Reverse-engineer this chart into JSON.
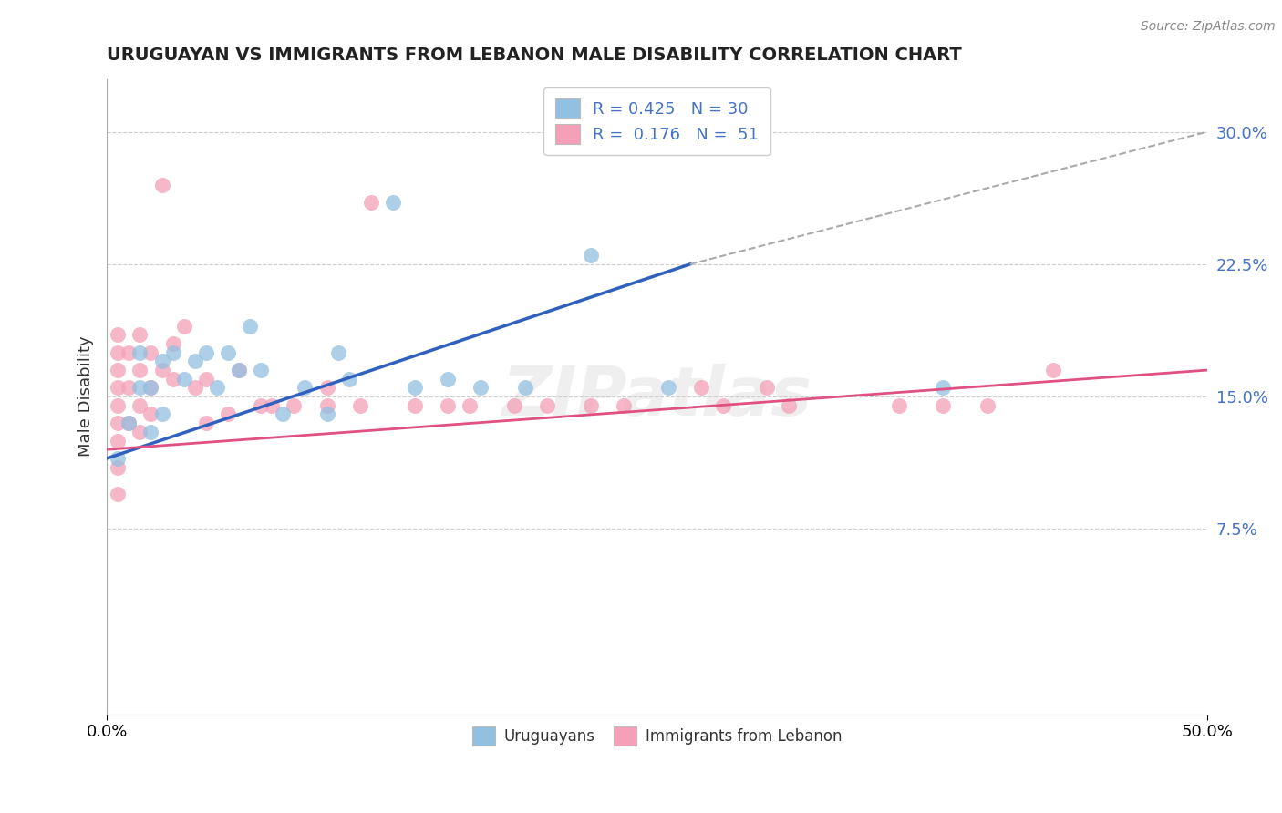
{
  "title": "URUGUAYAN VS IMMIGRANTS FROM LEBANON MALE DISABILITY CORRELATION CHART",
  "source": "Source: ZipAtlas.com",
  "ylabel": "Male Disability",
  "xlim": [
    0.0,
    0.5
  ],
  "ylim": [
    -0.03,
    0.33
  ],
  "ytick_vals": [
    0.075,
    0.15,
    0.225,
    0.3
  ],
  "ytick_labels": [
    "7.5%",
    "15.0%",
    "22.5%",
    "30.0%"
  ],
  "xtick_vals": [
    0.0,
    0.5
  ],
  "xtick_labels": [
    "0.0%",
    "50.0%"
  ],
  "uruguayan_color": "#92C0E0",
  "lebanon_color": "#F4A0B8",
  "trend_uruguayan_color": "#3060C0",
  "trend_lebanon_color": "#E05080",
  "trend_dashed_color": "#AAAAAA",
  "background_color": "#FFFFFF",
  "grid_color": "#CCCCCC",
  "tick_label_color": "#4472C4",
  "legend1_label1": "R = 0.425   N = 30",
  "legend1_label2": "R =  0.176   N =  51",
  "legend2_label1": "Uruguayans",
  "legend2_label2": "Immigrants from Lebanon",
  "watermark": "ZIPatlas",
  "uruguayan_points_x": [
    0.005,
    0.01,
    0.015,
    0.015,
    0.02,
    0.02,
    0.025,
    0.025,
    0.03,
    0.035,
    0.04,
    0.045,
    0.05,
    0.055,
    0.06,
    0.065,
    0.07,
    0.08,
    0.09,
    0.1,
    0.105,
    0.11,
    0.13,
    0.14,
    0.155,
    0.17,
    0.19,
    0.22,
    0.255,
    0.38
  ],
  "uruguayan_points_y": [
    0.115,
    0.135,
    0.155,
    0.175,
    0.13,
    0.155,
    0.14,
    0.17,
    0.175,
    0.16,
    0.17,
    0.175,
    0.155,
    0.175,
    0.165,
    0.19,
    0.165,
    0.14,
    0.155,
    0.14,
    0.175,
    0.16,
    0.26,
    0.155,
    0.16,
    0.155,
    0.155,
    0.23,
    0.155,
    0.155
  ],
  "lebanon_points_x": [
    0.005,
    0.005,
    0.005,
    0.005,
    0.005,
    0.005,
    0.005,
    0.005,
    0.005,
    0.01,
    0.01,
    0.01,
    0.015,
    0.015,
    0.015,
    0.015,
    0.02,
    0.02,
    0.02,
    0.025,
    0.025,
    0.03,
    0.03,
    0.035,
    0.04,
    0.045,
    0.045,
    0.055,
    0.06,
    0.07,
    0.075,
    0.085,
    0.1,
    0.1,
    0.115,
    0.12,
    0.14,
    0.155,
    0.165,
    0.185,
    0.2,
    0.22,
    0.235,
    0.27,
    0.28,
    0.3,
    0.31,
    0.36,
    0.38,
    0.4,
    0.43
  ],
  "lebanon_points_y": [
    0.095,
    0.11,
    0.125,
    0.135,
    0.145,
    0.155,
    0.165,
    0.175,
    0.185,
    0.135,
    0.155,
    0.175,
    0.13,
    0.145,
    0.165,
    0.185,
    0.14,
    0.155,
    0.175,
    0.165,
    0.27,
    0.16,
    0.18,
    0.19,
    0.155,
    0.16,
    0.135,
    0.14,
    0.165,
    0.145,
    0.145,
    0.145,
    0.155,
    0.145,
    0.145,
    0.26,
    0.145,
    0.145,
    0.145,
    0.145,
    0.145,
    0.145,
    0.145,
    0.155,
    0.145,
    0.155,
    0.145,
    0.145,
    0.145,
    0.145,
    0.165
  ],
  "trend_u_x0": 0.0,
  "trend_u_y0": 0.115,
  "trend_u_x1": 0.265,
  "trend_u_y1": 0.225,
  "trend_u_dash_x0": 0.265,
  "trend_u_dash_y0": 0.225,
  "trend_u_dash_x1": 0.5,
  "trend_u_dash_y1": 0.3,
  "trend_l_x0": 0.0,
  "trend_l_y0": 0.12,
  "trend_l_x1": 0.5,
  "trend_l_y1": 0.165
}
